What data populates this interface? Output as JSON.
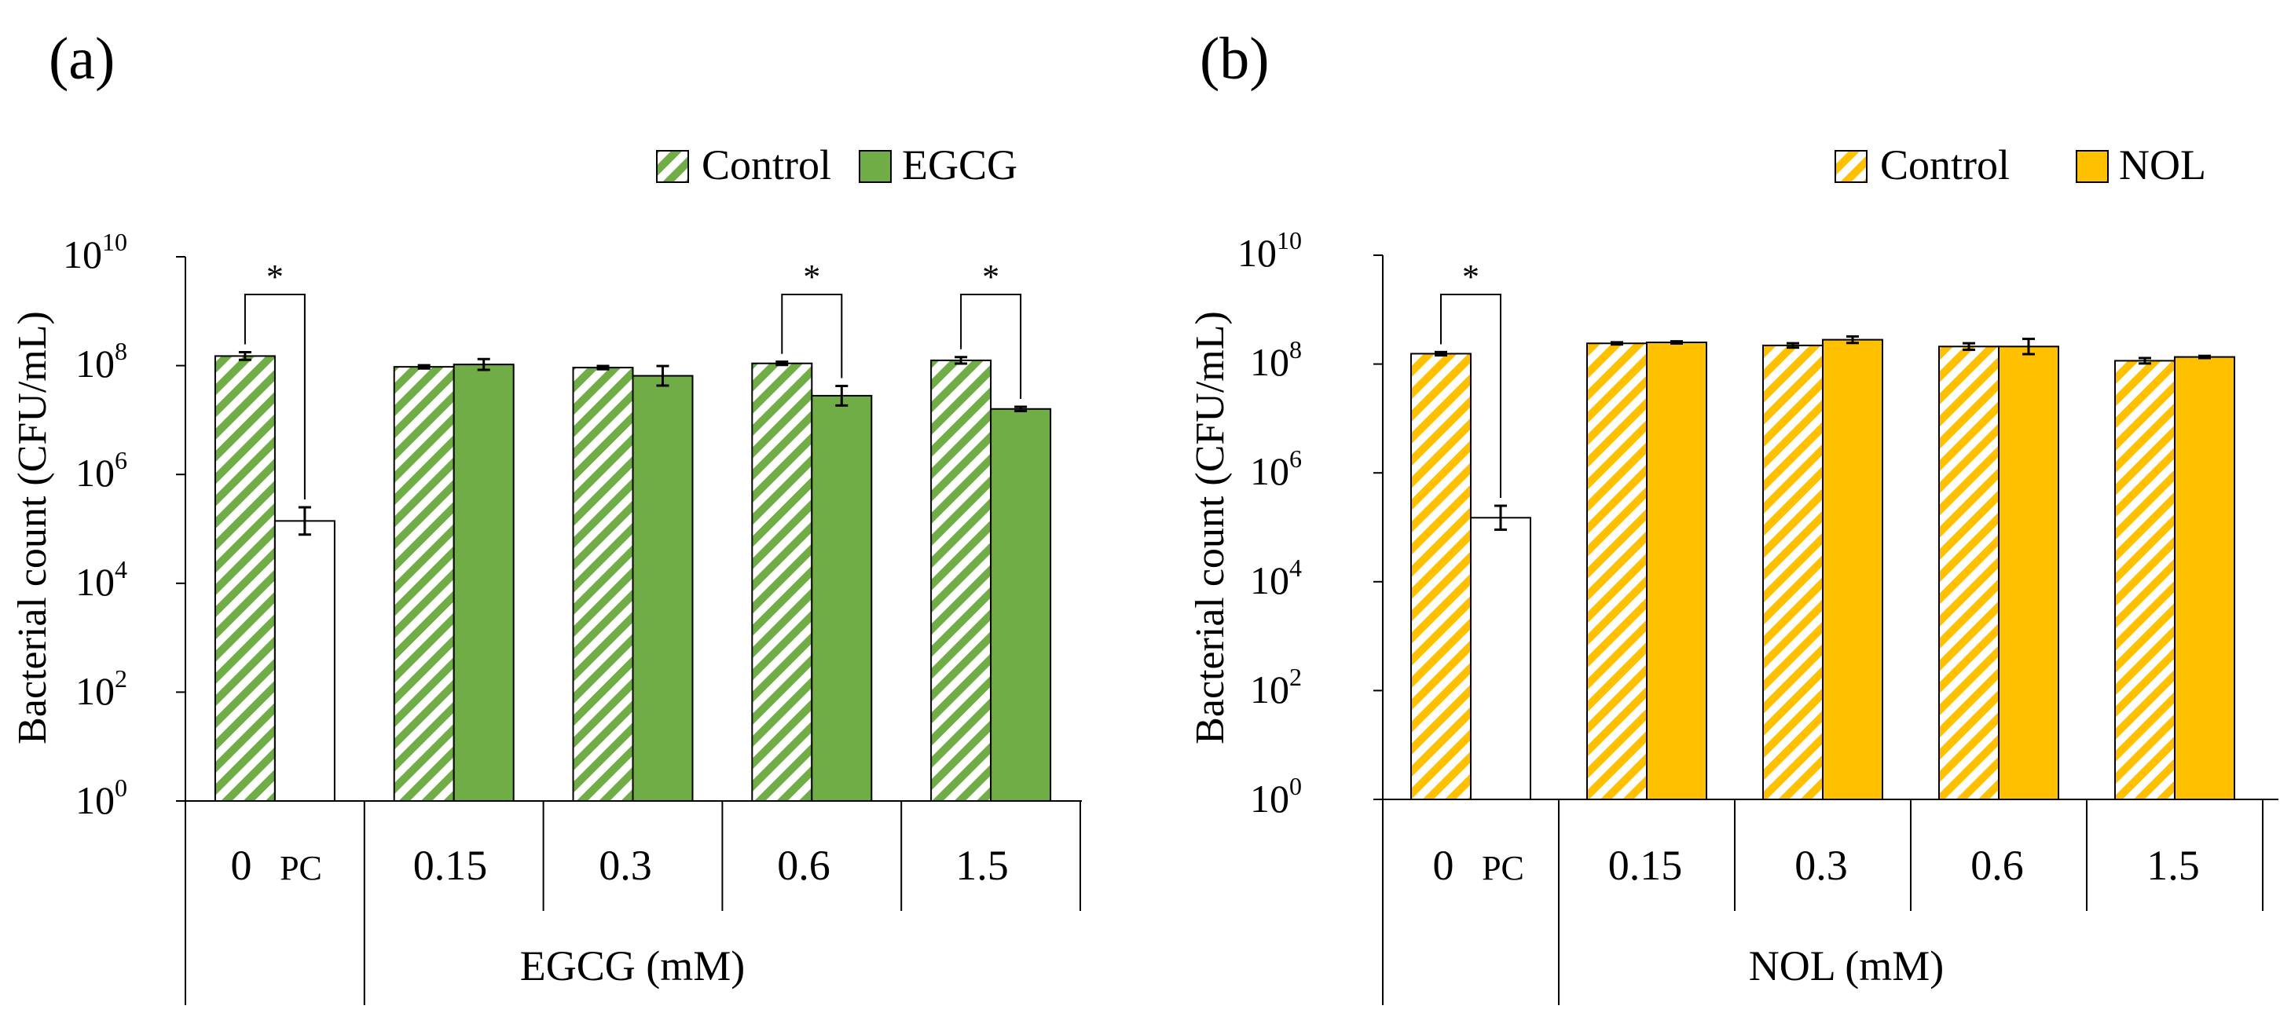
{
  "chart_data": [
    {
      "type": "bar",
      "panel_label": "(a)",
      "scale": "log10",
      "ylabel": "Bacterial count (CFU/mL)",
      "xlabel": "EGCG (mM)",
      "ylim": [
        1,
        10000000000
      ],
      "y_ticks": [
        {
          "base": "10",
          "exp": "0"
        },
        {
          "base": "10",
          "exp": "2"
        },
        {
          "base": "10",
          "exp": "4"
        },
        {
          "base": "10",
          "exp": "6"
        },
        {
          "base": "10",
          "exp": "8"
        },
        {
          "base": "10",
          "exp": "10"
        }
      ],
      "categories": [
        "0",
        "0.15",
        "0.3",
        "0.6",
        "1.5"
      ],
      "first_group_second_label": "PC",
      "color": "#70AD47",
      "legend": {
        "control": "Control",
        "treatment": "EGCG"
      },
      "series": [
        {
          "name": "Control",
          "pattern": "hatched",
          "values": [
            150000000,
            95000000,
            92000000,
            110000000,
            125000000
          ],
          "errors_log": [
            0.07,
            0.03,
            0.03,
            0.03,
            0.06
          ]
        },
        {
          "name": "EGCG",
          "pattern": "solid",
          "first_group_is_pc": true,
          "values": [
            140000,
            105000000,
            65000000,
            28000000,
            16000000
          ],
          "errors_log": [
            0.25,
            0.1,
            0.18,
            0.18,
            0.04
          ]
        }
      ],
      "significance": [
        {
          "group": 0,
          "label": "*"
        },
        {
          "group": 3,
          "label": "*"
        },
        {
          "group": 4,
          "label": "*"
        }
      ]
    },
    {
      "type": "bar",
      "panel_label": "(b)",
      "scale": "log10",
      "ylabel": "Bacterial count (CFU/mL)",
      "xlabel": "NOL (mM)",
      "ylim": [
        1,
        10000000000
      ],
      "y_ticks": [
        {
          "base": "10",
          "exp": "0"
        },
        {
          "base": "10",
          "exp": "2"
        },
        {
          "base": "10",
          "exp": "4"
        },
        {
          "base": "10",
          "exp": "6"
        },
        {
          "base": "10",
          "exp": "8"
        },
        {
          "base": "10",
          "exp": "10"
        }
      ],
      "categories": [
        "0",
        "0.15",
        "0.3",
        "0.6",
        "1.5"
      ],
      "first_group_second_label": "PC",
      "color": "#FFC000",
      "legend": {
        "control": "Control",
        "treatment": "NOL"
      },
      "series": [
        {
          "name": "Control",
          "pattern": "hatched",
          "values": [
            155000000,
            240000000,
            220000000,
            210000000,
            115000000
          ],
          "errors_log": [
            0.03,
            0.02,
            0.04,
            0.06,
            0.05
          ]
        },
        {
          "name": "NOL",
          "pattern": "solid",
          "first_group_is_pc": true,
          "values": [
            150000,
            250000000,
            280000000,
            210000000,
            135000000
          ],
          "errors_log": [
            0.22,
            0.02,
            0.06,
            0.14,
            0.02
          ]
        }
      ],
      "significance": [
        {
          "group": 0,
          "label": "*"
        }
      ]
    }
  ]
}
